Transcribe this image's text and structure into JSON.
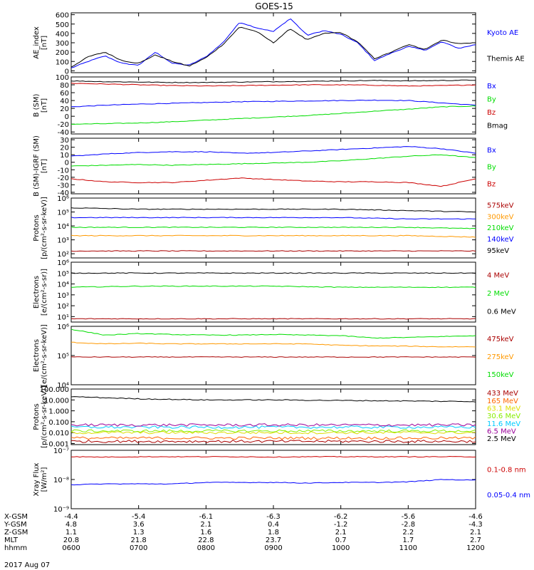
{
  "title": "GOES-15",
  "date": "2017 Aug 07",
  "colors": {
    "black": "#000000",
    "blue": "#0000ff",
    "red": "#cc0000",
    "green": "#00dd00",
    "orange": "#ff9900",
    "darkred": "#aa0000",
    "cyan": "#00ccff",
    "purple": "#990099",
    "gold": "#dddd00",
    "yellowgreen": "#88ee00",
    "burnt": "#ff6600"
  },
  "time_axis": {
    "rows": [
      {
        "label": "X-GSM",
        "values": [
          "-4.4",
          "-5.4",
          "-6.1",
          "-6.3",
          "-6.2",
          "-5.6",
          "-4.6"
        ]
      },
      {
        "label": "Y-GSM",
        "values": [
          "4.8",
          "3.6",
          "2.1",
          "0.4",
          "-1.2",
          "-2.8",
          "-4.3"
        ]
      },
      {
        "label": "Z-GSM",
        "values": [
          "1.1",
          "1.3",
          "1.6",
          "1.8",
          "2.1",
          "2.2",
          "2.1"
        ]
      },
      {
        "label": "MLT",
        "values": [
          "20.8",
          "21.8",
          "22.8",
          "23.7",
          "0.7",
          "1.7",
          "2.7"
        ]
      },
      {
        "label": "hhmm",
        "values": [
          "0600",
          "0700",
          "0800",
          "0900",
          "1000",
          "1100",
          "1200"
        ]
      }
    ]
  },
  "chart_data": [
    {
      "type": "line",
      "ylabel": "AE_index\n[nT]",
      "ylim": [
        -20,
        620
      ],
      "log": false,
      "ticks": [
        "600",
        "500",
        "400",
        "300",
        "200",
        "100",
        "0"
      ],
      "tickvals": [
        600,
        500,
        400,
        300,
        200,
        100,
        0
      ],
      "x": [
        6.0,
        6.25,
        6.5,
        6.75,
        7.0,
        7.25,
        7.5,
        7.75,
        8.0,
        8.25,
        8.5,
        8.75,
        9.0,
        9.25,
        9.5,
        9.75,
        10.0,
        10.25,
        10.5,
        10.75,
        11.0,
        11.25,
        11.5,
        11.75,
        12.0
      ],
      "series": [
        {
          "name": "Kyoto AE",
          "color": "blue",
          "values": [
            30,
            100,
            160,
            80,
            60,
            200,
            80,
            60,
            150,
            300,
            520,
            460,
            420,
            560,
            380,
            430,
            390,
            300,
            110,
            190,
            260,
            220,
            310,
            240,
            280
          ]
        },
        {
          "name": "Themis AE",
          "color": "black",
          "values": [
            40,
            150,
            200,
            110,
            80,
            170,
            100,
            50,
            140,
            280,
            470,
            420,
            300,
            450,
            330,
            400,
            410,
            310,
            130,
            200,
            280,
            230,
            330,
            290,
            300
          ]
        }
      ]
    },
    {
      "type": "line",
      "ylabel": "B (SM)\n[nT]",
      "ylim": [
        -45,
        100
      ],
      "log": false,
      "ticks": [
        "100",
        "80",
        "60",
        "40",
        "20",
        "0",
        "-20",
        "-40"
      ],
      "tickvals": [
        100,
        80,
        60,
        40,
        20,
        0,
        -20,
        -40
      ],
      "x": [
        6.0,
        6.5,
        7.0,
        7.5,
        8.0,
        8.5,
        9.0,
        9.5,
        10.0,
        10.5,
        11.0,
        11.5,
        12.0
      ],
      "series": [
        {
          "name": "Bx",
          "color": "blue",
          "values": [
            24,
            28,
            31,
            33,
            35,
            37,
            38,
            39,
            40,
            41,
            40,
            34,
            28
          ]
        },
        {
          "name": "By",
          "color": "green",
          "values": [
            -20,
            -19,
            -17,
            -14,
            -10,
            -6,
            -2,
            2,
            7,
            13,
            18,
            24,
            26
          ]
        },
        {
          "name": "Bz",
          "color": "red",
          "values": [
            84,
            82,
            80,
            78,
            77,
            78,
            79,
            80,
            80,
            79,
            77,
            78,
            80
          ]
        },
        {
          "name": "Bmag",
          "color": "black",
          "values": [
            90,
            88,
            87,
            86,
            86,
            87,
            88,
            89,
            90,
            91,
            90,
            91,
            92
          ]
        }
      ]
    },
    {
      "type": "line",
      "ylabel": "B (SM)-IGRF (SM)\n[nT]",
      "ylim": [
        -42,
        32
      ],
      "log": false,
      "ticks": [
        "30",
        "20",
        "10",
        "0",
        "-10",
        "-20",
        "-30",
        "-40"
      ],
      "tickvals": [
        30,
        20,
        10,
        0,
        -10,
        -20,
        -30,
        -40
      ],
      "x": [
        6.0,
        6.5,
        7.0,
        7.5,
        8.0,
        8.5,
        9.0,
        9.5,
        10.0,
        10.5,
        11.0,
        11.5,
        12.0
      ],
      "series": [
        {
          "name": "Bx",
          "color": "blue",
          "values": [
            8,
            11,
            13,
            14,
            14,
            12,
            13,
            15,
            17,
            19,
            21,
            18,
            12
          ]
        },
        {
          "name": "By",
          "color": "green",
          "values": [
            -5,
            -4,
            -3,
            -4,
            -3,
            -2,
            -1,
            0,
            2,
            5,
            8,
            10,
            6
          ]
        },
        {
          "name": "Bz",
          "color": "red",
          "values": [
            -22,
            -26,
            -27,
            -27,
            -24,
            -21,
            -23,
            -25,
            -26,
            -26,
            -27,
            -32,
            -22
          ]
        }
      ]
    },
    {
      "type": "line",
      "ylabel": "Protons\n[p/(cm²-s-sr-keV)]",
      "ylim": [
        1.7,
        6.0
      ],
      "log": true,
      "ticks": [
        "10⁶",
        "10⁵",
        "10⁴",
        "10³",
        "10²"
      ],
      "tickvals": [
        6,
        5,
        4,
        3,
        2
      ],
      "x": [
        6.0,
        7.0,
        8.0,
        9.0,
        10.0,
        11.0,
        12.0
      ],
      "series": [
        {
          "name": "575keV",
          "color": "darkred",
          "values": [
            2.2,
            2.2,
            2.2,
            2.2,
            2.2,
            2.2,
            2.2
          ]
        },
        {
          "name": "300keV",
          "color": "orange",
          "values": [
            3.3,
            3.3,
            3.3,
            3.3,
            3.3,
            3.3,
            3.2
          ]
        },
        {
          "name": "210keV",
          "color": "green",
          "values": [
            3.9,
            3.9,
            3.9,
            3.9,
            3.9,
            3.9,
            3.8
          ]
        },
        {
          "name": "140keV",
          "color": "blue",
          "values": [
            4.6,
            4.6,
            4.6,
            4.6,
            4.6,
            4.5,
            4.5
          ]
        },
        {
          "name": "95keV",
          "color": "black",
          "values": [
            5.3,
            5.2,
            5.2,
            5.2,
            5.2,
            5.1,
            5.0
          ]
        }
      ]
    },
    {
      "type": "line",
      "ylabel": "Electrons\n[e/(cm²-s-sr)]",
      "ylim": [
        0.5,
        6.0
      ],
      "log": true,
      "ticks": [
        "10⁶",
        "10⁵",
        "10⁴",
        "10³",
        "10²",
        "10¹"
      ],
      "tickvals": [
        6,
        5,
        4,
        3,
        2,
        1
      ],
      "x": [
        6.0,
        7.0,
        8.0,
        9.0,
        10.0,
        11.0,
        12.0
      ],
      "series": [
        {
          "name": "4 MeV",
          "color": "darkred",
          "values": [
            0.8,
            0.8,
            0.8,
            0.8,
            0.8,
            0.8,
            0.8
          ]
        },
        {
          "name": "2 MeV",
          "color": "green",
          "values": [
            3.7,
            3.8,
            3.8,
            3.8,
            3.7,
            3.7,
            3.7
          ]
        },
        {
          "name": "0.6 MeV",
          "color": "black",
          "values": [
            5.0,
            5.0,
            5.0,
            5.0,
            5.0,
            5.0,
            5.0
          ]
        }
      ]
    },
    {
      "type": "line",
      "ylabel": "Electrons\n[e/(cm²-s-sr-keV)]",
      "ylim": [
        4.0,
        6.0
      ],
      "log": true,
      "ticks": [
        "10⁶",
        "10⁵",
        "10⁴"
      ],
      "tickvals": [
        6,
        5,
        4
      ],
      "x": [
        6.0,
        6.5,
        7.0,
        7.5,
        8.0,
        8.5,
        9.0,
        9.5,
        10.0,
        10.5,
        11.0,
        11.5,
        12.0
      ],
      "series": [
        {
          "name": "475keV",
          "color": "darkred",
          "values": [
            4.95,
            4.95,
            4.95,
            4.95,
            4.95,
            4.95,
            4.95,
            4.95,
            4.95,
            4.95,
            4.95,
            4.95,
            4.95
          ]
        },
        {
          "name": "275keV",
          "color": "orange",
          "values": [
            5.45,
            5.4,
            5.42,
            5.4,
            5.4,
            5.4,
            5.4,
            5.4,
            5.35,
            5.33,
            5.32,
            5.3,
            5.3
          ]
        },
        {
          "name": "150keV",
          "color": "green",
          "values": [
            5.9,
            5.7,
            5.75,
            5.72,
            5.7,
            5.7,
            5.72,
            5.7,
            5.68,
            5.6,
            5.62,
            5.65,
            5.68
          ]
        }
      ]
    },
    {
      "type": "line",
      "ylabel": "Protons\n[p/(cm²-s-sr-keV)]",
      "ylim": [
        -3.1,
        2.0
      ],
      "log": true,
      "ticks": [
        "100.000",
        "10.000",
        "1.000",
        "0.100",
        "0.010",
        "0.001"
      ],
      "tickvals": [
        2,
        1,
        0,
        -1,
        -2,
        -3
      ],
      "x": [
        6.0,
        7.0,
        8.0,
        9.0,
        10.0,
        11.0,
        12.0
      ],
      "series": [
        {
          "name": "433 MeV",
          "color": "darkred",
          "values": [
            -2.8,
            -2.8,
            -2.8,
            -2.8,
            -2.8,
            -2.8,
            -2.8
          ]
        },
        {
          "name": "165 MeV",
          "color": "burnt",
          "values": [
            -2.5,
            -2.5,
            -2.5,
            -2.5,
            -2.5,
            -2.5,
            -2.5
          ]
        },
        {
          "name": "63.1 MeV",
          "color": "gold",
          "values": [
            -2.0,
            -2.0,
            -2.0,
            -2.0,
            -2.0,
            -2.0,
            -2.0
          ]
        },
        {
          "name": "30.6 MeV",
          "color": "yellowgreen",
          "values": [
            -1.85,
            -1.85,
            -1.85,
            -1.85,
            -1.85,
            -1.85,
            -1.85
          ]
        },
        {
          "name": "11.6 MeV",
          "color": "cyan",
          "values": [
            -1.5,
            -1.5,
            -1.5,
            -1.5,
            -1.5,
            -1.5,
            -1.5
          ]
        },
        {
          "name": "6.5 MeV",
          "color": "purple",
          "values": [
            -1.3,
            -1.3,
            -1.3,
            -1.3,
            -1.3,
            -1.3,
            -1.3
          ]
        },
        {
          "name": "2.5 MeV",
          "color": "black",
          "values": [
            1.3,
            1.1,
            1.0,
            1.0,
            0.95,
            0.9,
            0.85
          ]
        }
      ]
    },
    {
      "type": "line",
      "ylabel": "Xray Flux\n[W/m²]",
      "ylim": [
        -9.0,
        -7.0
      ],
      "log": true,
      "ticks": [
        "10⁻⁷",
        "10⁻⁸",
        "10⁻⁹"
      ],
      "tickvals": [
        -7,
        -8,
        -9
      ],
      "x": [
        6.0,
        6.5,
        7.0,
        7.5,
        8.0,
        8.5,
        9.0,
        9.5,
        10.0,
        10.5,
        11.0,
        11.5,
        12.0
      ],
      "series": [
        {
          "name": "0.1-0.8 nm",
          "color": "red",
          "values": [
            -7.22,
            -7.23,
            -7.22,
            -7.22,
            -7.22,
            -7.22,
            -7.23,
            -7.22,
            -7.22,
            -7.22,
            -7.22,
            -7.22,
            -7.22
          ]
        },
        {
          "name": "0.05-0.4 nm",
          "color": "blue",
          "values": [
            -8.18,
            -8.15,
            -8.15,
            -8.15,
            -8.1,
            -8.1,
            -8.1,
            -8.12,
            -8.1,
            -8.1,
            -8.08,
            -8.0,
            -8.02
          ]
        }
      ]
    }
  ]
}
